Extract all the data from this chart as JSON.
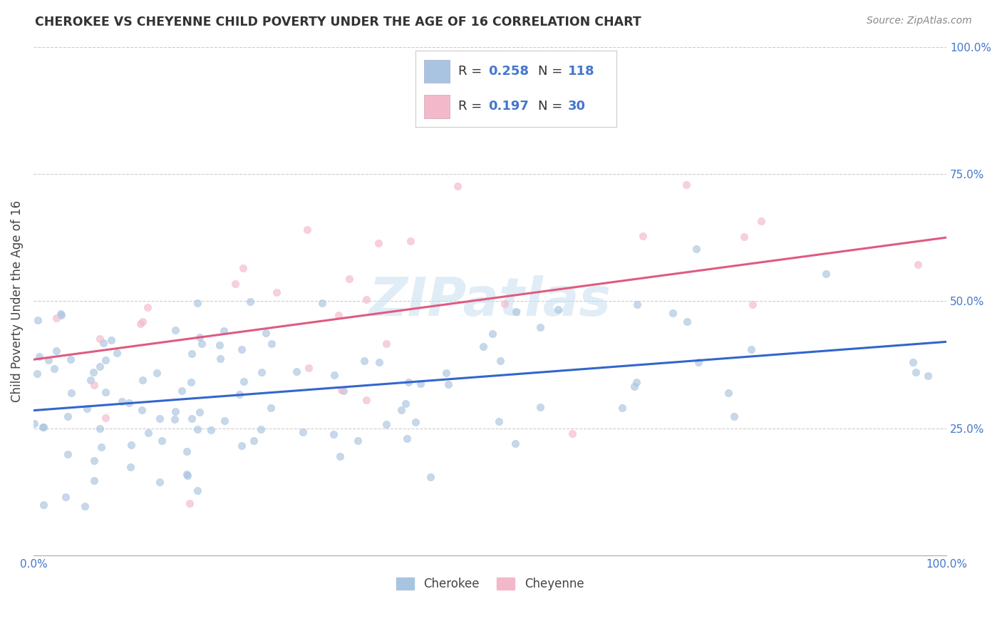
{
  "title": "CHEROKEE VS CHEYENNE CHILD POVERTY UNDER THE AGE OF 16 CORRELATION CHART",
  "source": "Source: ZipAtlas.com",
  "ylabel": "Child Poverty Under the Age of 16",
  "xlim": [
    0.0,
    1.0
  ],
  "ylim": [
    0.0,
    1.0
  ],
  "cherokee_color": "#a8c4e0",
  "cheyenne_color": "#f4b8cb",
  "cherokee_line_color": "#3366cc",
  "cheyenne_line_color": "#e05a80",
  "watermark": "ZIPatlas",
  "cherokee_R": 0.258,
  "cherokee_N": 118,
  "cheyenne_R": 0.197,
  "cheyenne_N": 30,
  "cherokee_trend_y0": 0.285,
  "cherokee_trend_y1": 0.42,
  "cheyenne_trend_y0": 0.385,
  "cheyenne_trend_y1": 0.625,
  "bg_color": "#ffffff",
  "grid_color": "#cccccc",
  "scatter_size": 55,
  "scatter_alpha": 0.65
}
